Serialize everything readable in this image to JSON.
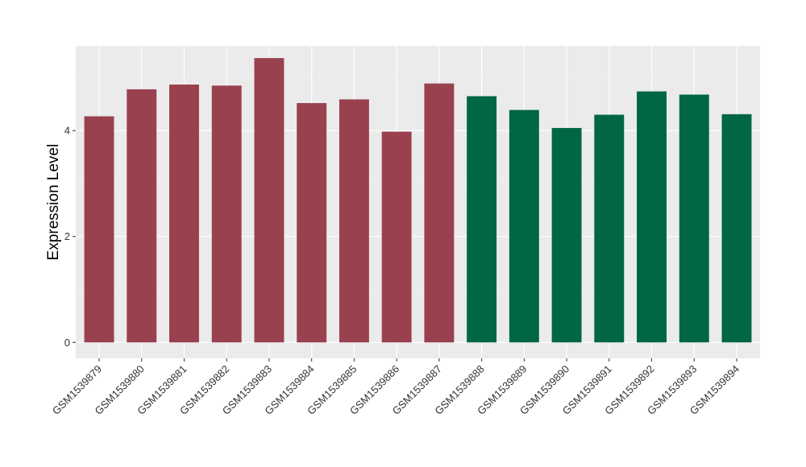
{
  "chart_data": {
    "type": "bar",
    "title": "",
    "xlabel": "",
    "ylabel": "Expression Level",
    "ylim": [
      -0.3,
      5.6
    ],
    "yticks": [
      0,
      2,
      4
    ],
    "categories": [
      "GSM1539879",
      "GSM1539880",
      "GSM1539881",
      "GSM1539882",
      "GSM1539883",
      "GSM1539884",
      "GSM1539885",
      "GSM1539886",
      "GSM1539887",
      "GSM1539888",
      "GSM1539889",
      "GSM1539890",
      "GSM1539891",
      "GSM1539892",
      "GSM1539893",
      "GSM1539894"
    ],
    "values": [
      4.27,
      4.78,
      4.87,
      4.85,
      5.37,
      4.52,
      4.59,
      3.98,
      4.89,
      4.65,
      4.39,
      4.05,
      4.3,
      4.74,
      4.68,
      4.31
    ],
    "groups": [
      0,
      0,
      0,
      0,
      0,
      0,
      0,
      0,
      0,
      1,
      1,
      1,
      1,
      1,
      1,
      1
    ],
    "group_colors": [
      "#9a4150",
      "#006644"
    ],
    "panel_background": "#ebebeb",
    "grid": true,
    "legend": "none"
  }
}
